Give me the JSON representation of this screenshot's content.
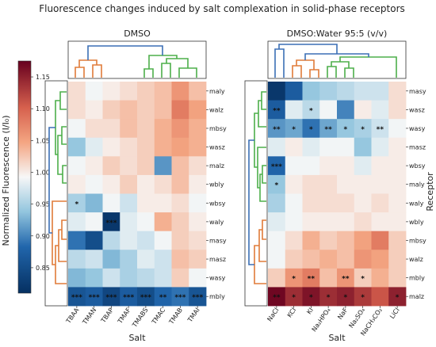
{
  "figure": {
    "title": "Fluorescence changes induced by salt complexation in solid-phase receptors"
  },
  "colorbar": {
    "label": "Normalized Fluorescence (I/I₀)",
    "ticks": [
      "1.15",
      "1.10",
      "1.05",
      "1.00",
      "0.95",
      "0.90",
      "0.85"
    ],
    "min": 0.81,
    "max": 1.175,
    "low_color": "#053061",
    "mid_color": "#f7f7f7",
    "high_color": "#67001f"
  },
  "chart_data": [
    {
      "type": "heatmap",
      "title": "DMSO",
      "xlabel": "Salt",
      "ylabel": "",
      "columns": [
        "TBAA",
        "TMAN",
        "TBAP",
        "TMAF",
        "TMABS",
        "TMAC",
        "TMAB",
        "TMAI"
      ],
      "rows": [
        "maly",
        "walz",
        "mbsy",
        "wasz",
        "malz",
        "wbly",
        "wbsy",
        "waly",
        "masy",
        "masz",
        "wasy",
        "mbly"
      ],
      "values": [
        [
          1.01,
          0.99,
          1.0,
          1.01,
          1.02,
          1.03,
          1.06,
          1.03
        ],
        [
          1.01,
          1.0,
          1.02,
          1.03,
          1.02,
          1.03,
          1.08,
          1.05
        ],
        [
          0.99,
          1.01,
          1.01,
          1.03,
          1.02,
          1.04,
          1.06,
          1.04
        ],
        [
          0.94,
          0.98,
          1.0,
          1.01,
          1.02,
          1.04,
          1.05,
          1.04
        ],
        [
          0.99,
          1.0,
          1.02,
          1.01,
          1.02,
          0.91,
          1.03,
          1.01
        ],
        [
          1.0,
          0.99,
          1.0,
          1.02,
          1.0,
          1.01,
          1.03,
          1.0
        ],
        [
          0.95,
          0.93,
          0.99,
          0.97,
          1.0,
          1.0,
          1.01,
          0.99
        ],
        [
          0.98,
          0.99,
          0.82,
          0.98,
          0.99,
          1.04,
          1.02,
          1.0
        ],
        [
          0.89,
          0.85,
          0.96,
          0.98,
          0.97,
          0.99,
          1.02,
          1.01
        ],
        [
          0.96,
          0.97,
          0.93,
          0.95,
          0.98,
          0.97,
          1.03,
          1.02
        ],
        [
          0.93,
          0.94,
          0.97,
          0.95,
          0.96,
          0.97,
          1.02,
          0.99
        ],
        [
          0.86,
          0.87,
          0.84,
          0.87,
          0.85,
          0.88,
          0.89,
          0.86
        ]
      ],
      "annotations": [
        {
          "row": "wbsy",
          "col": "TBAA",
          "text": "*"
        },
        {
          "row": "waly",
          "col": "TBAP",
          "text": "***"
        },
        {
          "row": "mbly",
          "col": "TBAA",
          "text": "***"
        },
        {
          "row": "mbly",
          "col": "TMAN",
          "text": "***"
        },
        {
          "row": "mbly",
          "col": "TBAP",
          "text": "***"
        },
        {
          "row": "mbly",
          "col": "TMAF",
          "text": "***"
        },
        {
          "row": "mbly",
          "col": "TMABS",
          "text": "***"
        },
        {
          "row": "mbly",
          "col": "TMAC",
          "text": "**"
        },
        {
          "row": "mbly",
          "col": "TMAB",
          "text": "***"
        },
        {
          "row": "mbly",
          "col": "TMAI",
          "text": "***"
        }
      ]
    },
    {
      "type": "heatmap",
      "title": "DMSO:Water 95:5 (v/v)",
      "xlabel": "Salt",
      "ylabel": "Receptor",
      "columns": [
        "NaCl",
        "KCl",
        "KI",
        "Na₂HPO₄",
        "NaF",
        "Na₂SO₄",
        "NaCH₃CO₂",
        "LiCl"
      ],
      "rows": [
        "masy",
        "wasz",
        "wasy",
        "masz",
        "wbsy",
        "maly",
        "waly",
        "wbly",
        "mbsy",
        "walz",
        "mbly",
        "malz"
      ],
      "values": [
        [
          0.82,
          0.87,
          0.94,
          0.95,
          0.96,
          0.97,
          0.97,
          1.01
        ],
        [
          0.87,
          0.98,
          0.96,
          0.99,
          0.9,
          1.0,
          0.98,
          1.01
        ],
        [
          0.91,
          0.92,
          0.89,
          0.92,
          0.94,
          0.95,
          0.97,
          0.99
        ],
        [
          0.98,
          1.0,
          0.98,
          0.99,
          0.99,
          0.94,
          0.98,
          1.0
        ],
        [
          0.88,
          0.99,
          0.99,
          1.0,
          1.0,
          0.98,
          1.0,
          1.0
        ],
        [
          0.94,
          1.0,
          1.01,
          1.01,
          1.0,
          1.0,
          1.0,
          1.0
        ],
        [
          0.95,
          0.99,
          1.01,
          1.01,
          1.01,
          1.0,
          1.01,
          1.0
        ],
        [
          0.98,
          0.99,
          1.0,
          1.0,
          1.0,
          1.01,
          1.0,
          1.0
        ],
        [
          0.99,
          1.01,
          1.04,
          1.02,
          1.03,
          1.05,
          1.08,
          1.02
        ],
        [
          0.99,
          1.02,
          1.03,
          1.04,
          1.03,
          1.06,
          1.05,
          1.02
        ],
        [
          1.02,
          1.06,
          1.08,
          1.03,
          1.06,
          1.02,
          1.04,
          1.02
        ],
        [
          1.17,
          1.14,
          1.16,
          1.14,
          1.15,
          1.13,
          1.11,
          1.15
        ]
      ],
      "annotations": [
        {
          "row": "wasz",
          "col": "NaCl",
          "text": "**"
        },
        {
          "row": "wasz",
          "col": "KI",
          "text": "*"
        },
        {
          "row": "wasy",
          "col": "NaCl",
          "text": "**"
        },
        {
          "row": "wasy",
          "col": "KCl",
          "text": "*"
        },
        {
          "row": "wasy",
          "col": "KI",
          "text": "*"
        },
        {
          "row": "wasy",
          "col": "Na₂HPO₄",
          "text": "**"
        },
        {
          "row": "wasy",
          "col": "NaF",
          "text": "*"
        },
        {
          "row": "wasy",
          "col": "Na₂SO₄",
          "text": "*"
        },
        {
          "row": "wasy",
          "col": "NaCH₃CO₂",
          "text": "**"
        },
        {
          "row": "wbsy",
          "col": "NaCl",
          "text": "***"
        },
        {
          "row": "maly",
          "col": "NaCl",
          "text": "*"
        },
        {
          "row": "mbly",
          "col": "KCl",
          "text": "*"
        },
        {
          "row": "mbly",
          "col": "KI",
          "text": "**"
        },
        {
          "row": "mbly",
          "col": "NaF",
          "text": "**"
        },
        {
          "row": "mbly",
          "col": "Na₂SO₄",
          "text": "*"
        },
        {
          "row": "malz",
          "col": "NaCl",
          "text": "**"
        },
        {
          "row": "malz",
          "col": "KCl",
          "text": "*"
        },
        {
          "row": "malz",
          "col": "KI",
          "text": "*"
        },
        {
          "row": "malz",
          "col": "Na₂HPO₄",
          "text": "*"
        },
        {
          "row": "malz",
          "col": "NaF",
          "text": "*"
        },
        {
          "row": "malz",
          "col": "Na₂SO₄",
          "text": "*"
        },
        {
          "row": "malz",
          "col": "LiCl",
          "text": "*"
        }
      ]
    }
  ],
  "dendrogram_colors": {
    "root": "#3b6fb6",
    "cluster_a": "#4daf4a",
    "cluster_b": "#e07b39"
  }
}
